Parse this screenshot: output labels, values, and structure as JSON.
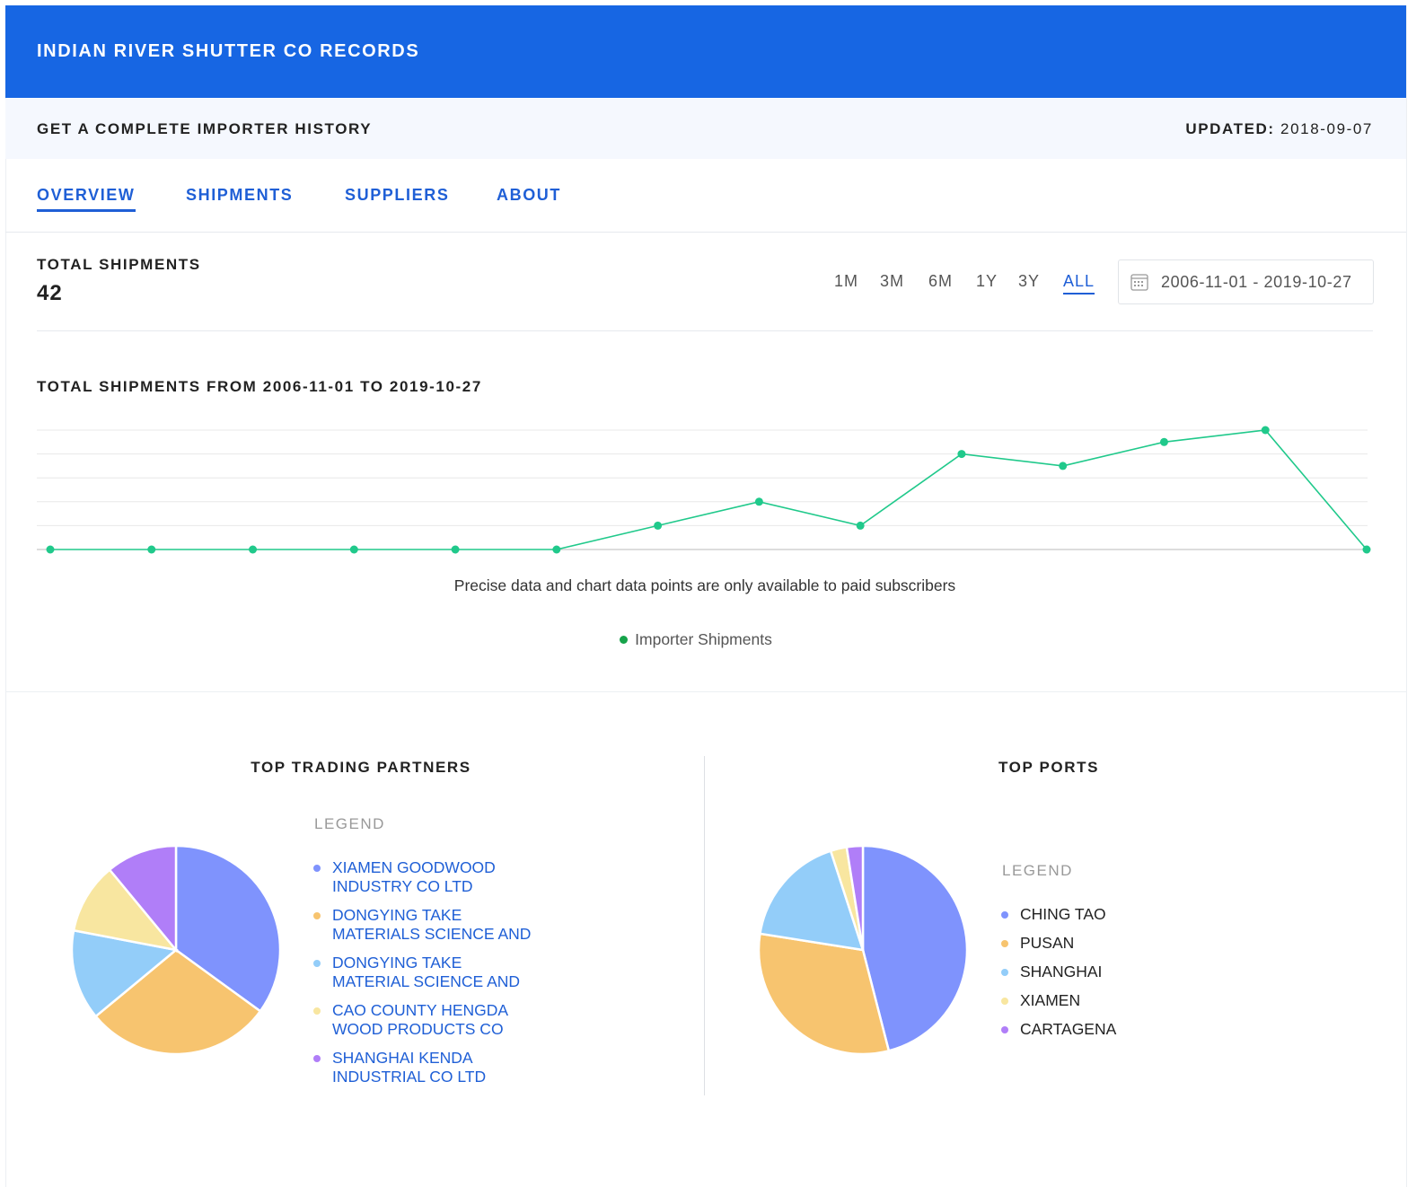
{
  "header": {
    "title": "INDIAN RIVER SHUTTER CO RECORDS"
  },
  "subheader": {
    "text": "GET A COMPLETE IMPORTER HISTORY",
    "updated_label": "UPDATED:",
    "updated_value": "2018-09-07"
  },
  "tabs": {
    "items": [
      "OVERVIEW",
      "SHIPMENTS",
      "SUPPLIERS",
      "ABOUT"
    ],
    "active": 0
  },
  "summary": {
    "label": "TOTAL SHIPMENTS",
    "value": 42
  },
  "ranges": {
    "items": [
      "1M",
      "3M",
      "6M",
      "1Y",
      "3Y",
      "ALL"
    ],
    "active": 5
  },
  "date_range": "2006-11-01 - 2019-10-27",
  "chart_data": [
    {
      "type": "line",
      "title": "TOTAL SHIPMENTS FROM 2006-11-01 TO 2019-10-27",
      "note": "Precise data and chart data points are only available to paid subscribers",
      "categories": [
        null,
        null,
        null,
        null,
        null,
        null,
        null,
        null,
        null,
        null,
        null,
        null,
        null,
        null
      ],
      "series": [
        {
          "name": "Importer Shipments",
          "color": "#20c98b",
          "legend_color": "#16a34a",
          "values": [
            0,
            0,
            0,
            0,
            0,
            0,
            1,
            2,
            1,
            4,
            3.5,
            4.5,
            5,
            0
          ]
        }
      ],
      "ylim": [
        0,
        5
      ],
      "yticks": [
        0,
        1,
        2,
        3,
        4,
        5
      ],
      "grid": true
    },
    {
      "type": "pie",
      "title": "TOP TRADING PARTNERS",
      "legend_title": "LEGEND",
      "categories": [
        "XIAMEN GOODWOOD INDUSTRY CO LTD",
        "DONGYING TAKE MATERIALS SCIENCE AND",
        "DONGYING TAKE MATERIAL SCIENCE AND",
        "CAO COUNTY HENGDA WOOD PRODUCTS CO",
        "SHANGHAI KENDA INDUSTRIAL CO LTD"
      ],
      "values": [
        35,
        29,
        14,
        11,
        11
      ],
      "colors": [
        "#7f93fd",
        "#f7c46f",
        "#93cdf9",
        "#f8e6a0",
        "#b07ef8"
      ],
      "legend_text_color": "#1f5fd6"
    },
    {
      "type": "pie",
      "title": "TOP PORTS",
      "legend_title": "LEGEND",
      "categories": [
        "CHING TAO",
        "PUSAN",
        "SHANGHAI",
        "XIAMEN",
        "CARTAGENA"
      ],
      "values": [
        46,
        31.5,
        17.5,
        2.5,
        2.5
      ],
      "colors": [
        "#7f93fd",
        "#f7c46f",
        "#93cdf9",
        "#f8e6a0",
        "#b07ef8"
      ],
      "legend_text_color": "#222222"
    }
  ]
}
